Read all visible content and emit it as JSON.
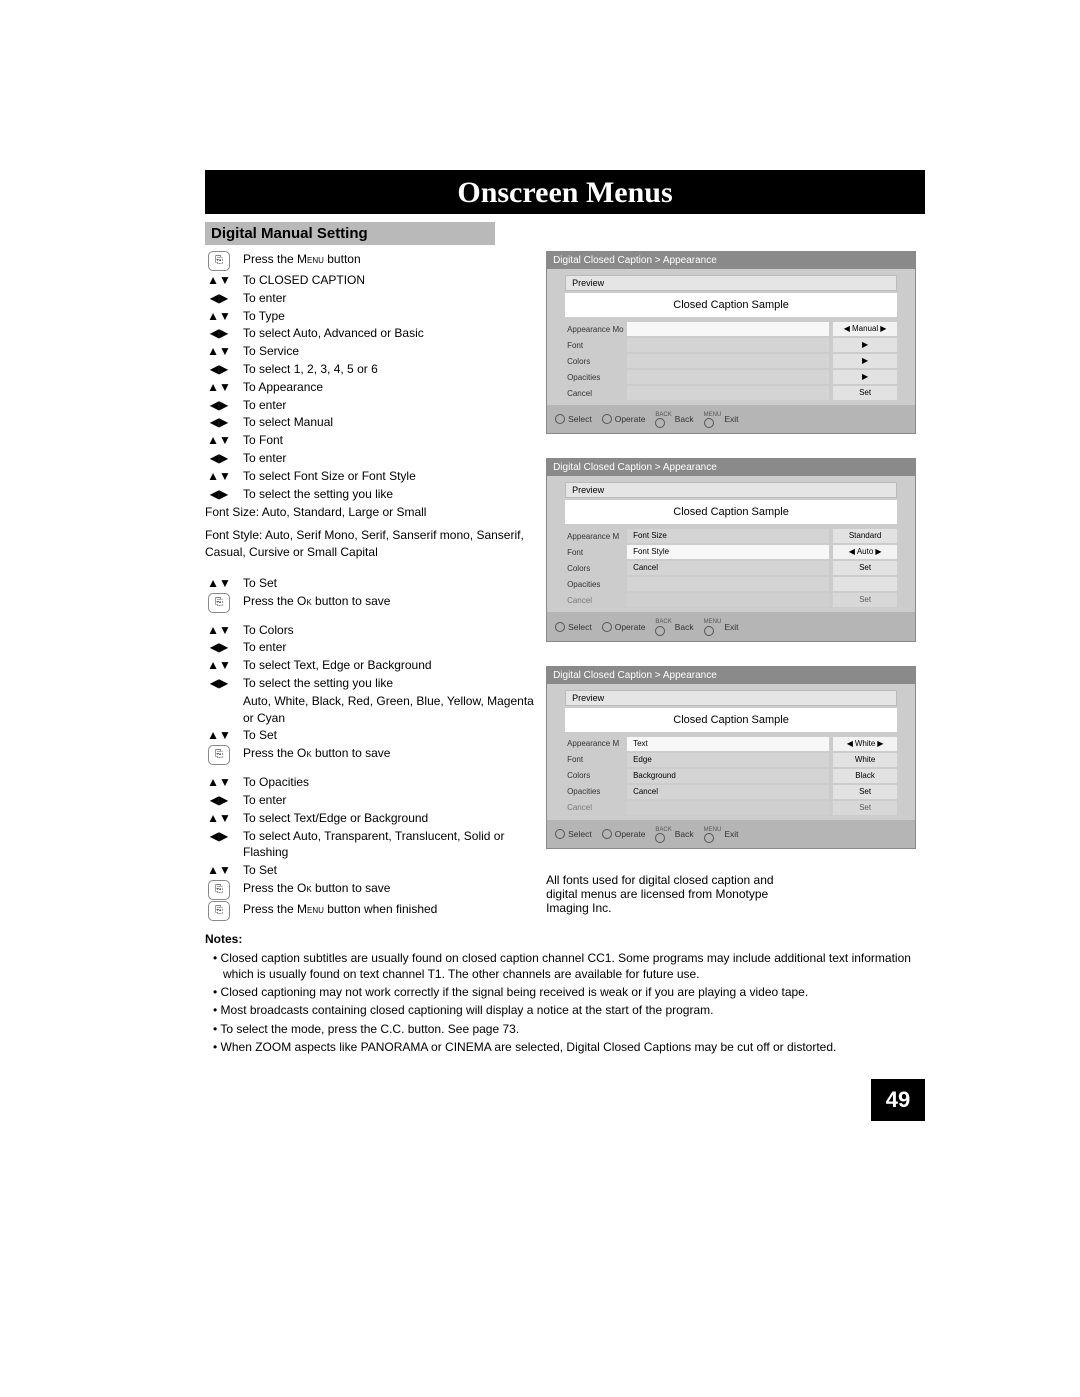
{
  "page": {
    "banner": "Onscreen Menus",
    "section_title": "Digital Manual Setting",
    "page_number": "49"
  },
  "steps": [
    {
      "icon": "thumb",
      "text_parts": [
        "Press the ",
        "Menu",
        " button"
      ]
    },
    {
      "icon": "updown",
      "text": "To CLOSED CAPTION"
    },
    {
      "icon": "leftright",
      "text": "To enter"
    },
    {
      "icon": "updown",
      "text": "To Type"
    },
    {
      "icon": "leftright",
      "text": "To select Auto, Advanced or Basic"
    },
    {
      "icon": "updown",
      "text": "To Service"
    },
    {
      "icon": "leftright",
      "text": "To select 1, 2, 3, 4, 5 or 6"
    },
    {
      "icon": "updown",
      "text": "To Appearance"
    },
    {
      "icon": "leftright",
      "text": "To enter"
    },
    {
      "icon": "leftright",
      "text": "To select Manual"
    },
    {
      "icon": "updown",
      "text": "To Font"
    },
    {
      "icon": "leftright",
      "text": "To enter"
    },
    {
      "icon": "updown",
      "text": "To select Font Size or Font Style"
    },
    {
      "icon": "leftright",
      "text": "To select the setting you like"
    }
  ],
  "mid_notes": [
    "Font Size: Auto, Standard, Large or Small",
    "Font Style: Auto, Serif Mono, Serif, Sanserif mono, Sanserif, Casual, Cursive or Small Capital"
  ],
  "steps2": [
    {
      "icon": "updown",
      "text": "To Set"
    },
    {
      "icon": "thumb",
      "text_parts": [
        "Press the ",
        "Ok",
        " button to save"
      ]
    }
  ],
  "steps3": [
    {
      "icon": "updown",
      "text": "To Colors"
    },
    {
      "icon": "leftright",
      "text": "To enter"
    },
    {
      "icon": "updown",
      "text": "To select Text, Edge or Background"
    },
    {
      "icon": "leftright",
      "text": "To select the setting you like"
    },
    {
      "icon": "",
      "text": "Auto, White, Black, Red, Green, Blue, Yellow, Magenta or Cyan"
    },
    {
      "icon": "updown",
      "text": "To Set"
    },
    {
      "icon": "thumb",
      "text_parts": [
        "Press the ",
        "Ok",
        " button to save"
      ]
    }
  ],
  "steps4": [
    {
      "icon": "updown",
      "text": "To Opacities"
    },
    {
      "icon": "leftright",
      "text": "To enter"
    },
    {
      "icon": "updown",
      "text": "To select Text/Edge or Background"
    },
    {
      "icon": "leftright",
      "text": "To select Auto, Transparent, Translucent, Solid or Flashing"
    },
    {
      "icon": "updown",
      "text": "To Set"
    },
    {
      "icon": "thumb",
      "text_parts": [
        "Press the ",
        "Ok",
        " button to save"
      ]
    },
    {
      "icon": "thumb",
      "text_parts": [
        "Press the ",
        "Menu",
        " button when finished"
      ]
    }
  ],
  "osd": {
    "crumb": "Digital Closed Caption  >  Appearance",
    "preview": "Preview",
    "sample": "Closed Caption Sample",
    "footer": {
      "select": "Select",
      "operate": "Operate",
      "back": "Back",
      "exit": "Exit",
      "back_mini": "BACK",
      "menu_mini": "MENU"
    },
    "panel1": {
      "rows": [
        {
          "l": "Appearance Mo",
          "m": "",
          "r": "Manual",
          "arrows": true,
          "sel": true
        },
        {
          "l": "Font",
          "m": "",
          "r": "▶",
          "arrows": false
        },
        {
          "l": "Colors",
          "m": "",
          "r": "▶",
          "arrows": false
        },
        {
          "l": "Opacities",
          "m": "",
          "r": "▶",
          "arrows": false
        },
        {
          "l": "Cancel",
          "m": "",
          "r": "Set",
          "arrows": false
        }
      ]
    },
    "panel2": {
      "rows": [
        {
          "l": "Appearance M",
          "m": "Font Size",
          "r": "Standard",
          "arrows": false
        },
        {
          "l": "Font",
          "m": "Font Style",
          "r": "Auto",
          "arrows": true,
          "sel": true
        },
        {
          "l": "Colors",
          "m": "Cancel",
          "r": "Set",
          "arrows": false
        },
        {
          "l": "Opacities",
          "m": "",
          "r": "",
          "arrows": false
        },
        {
          "l": "Cancel",
          "m": "",
          "r": "Set",
          "arrows": false,
          "faded": true
        }
      ]
    },
    "panel3": {
      "rows": [
        {
          "l": "Appearance M",
          "m": "Text",
          "r": "White",
          "arrows": true,
          "sel": true
        },
        {
          "l": "Font",
          "m": "Edge",
          "r": "White",
          "arrows": false
        },
        {
          "l": "Colors",
          "m": "Background",
          "r": "Black",
          "arrows": false
        },
        {
          "l": "Opacities",
          "m": "Cancel",
          "r": "Set",
          "arrows": false
        },
        {
          "l": "Cancel",
          "m": "",
          "r": "Set",
          "arrows": false,
          "faded": true
        }
      ]
    }
  },
  "right_note": "All fonts used for digital closed caption and digital menus are licensed from Monotype Imaging Inc.",
  "notes_heading": "Notes:",
  "notes": [
    "Closed caption subtitles are usually found on closed caption channel CC1. Some programs may include additional text information which is usually found on text channel T1. The other channels are available for future use.",
    "Closed captioning may not work correctly if the signal being received is weak or if you are playing a video tape.",
    "Most broadcasts containing closed captioning will display a notice at the start of the program.",
    "To select the mode, press the C.C. button. See page 73.",
    "When ZOOM aspects like PANORAMA or CINEMA are selected, Digital Closed Captions may be cut off or distorted."
  ],
  "icons": {
    "updown": "▲▼",
    "leftright": "◀▶"
  }
}
